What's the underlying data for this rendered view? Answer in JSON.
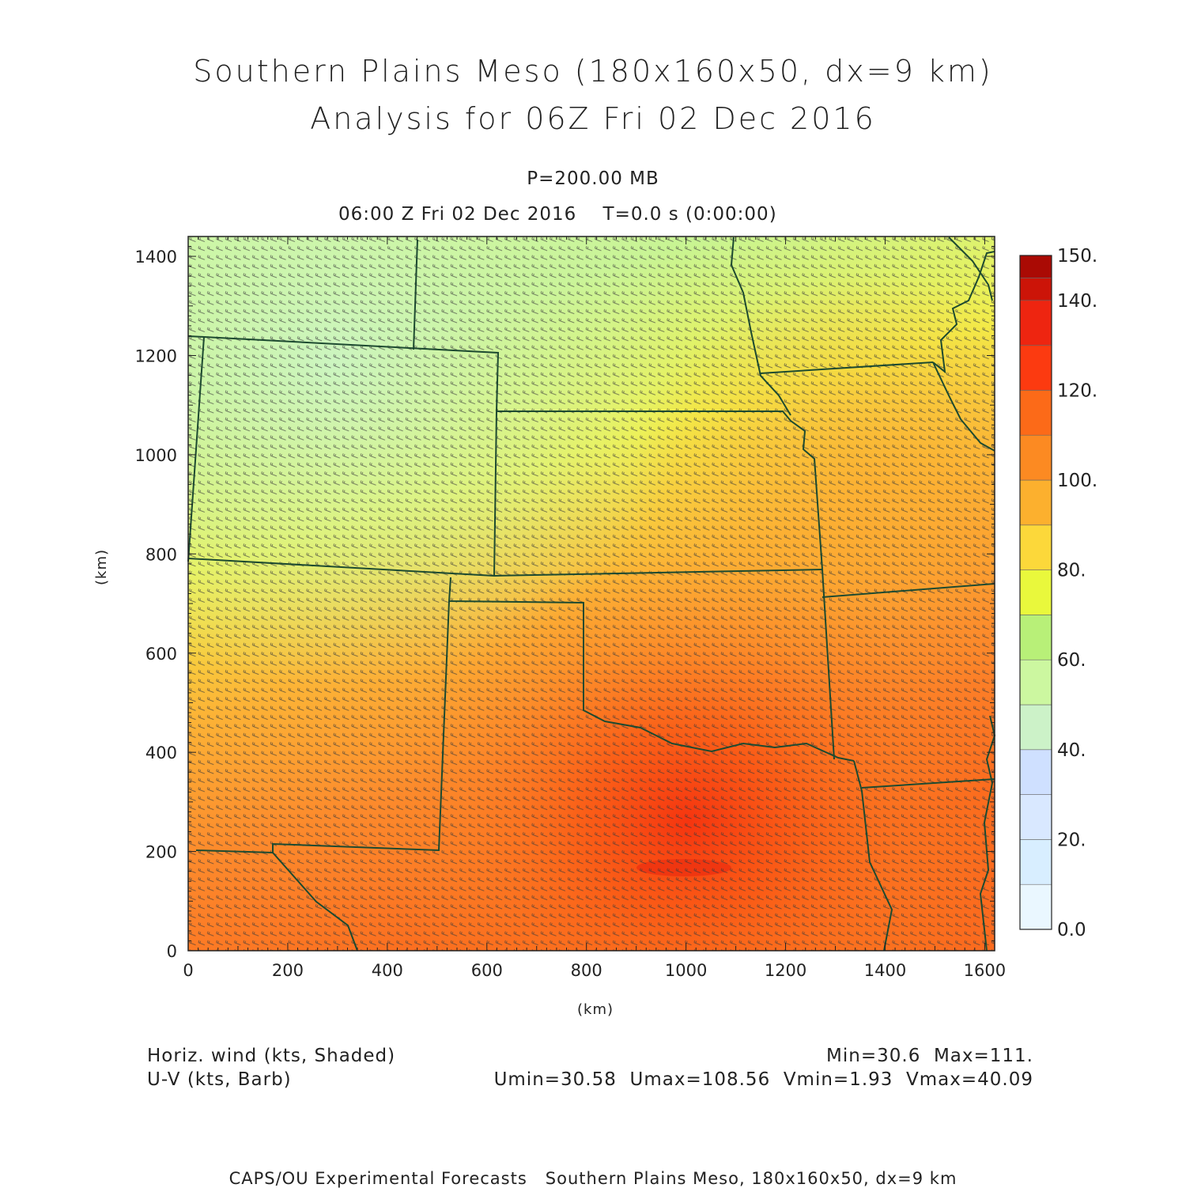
{
  "header": {
    "title_line1": "Southern Plains Meso (180x160x50, dx=9 km)",
    "title_line2": "Analysis for 06Z Fri 02 Dec 2016",
    "level": "P=200.00 MB",
    "time": "06:00 Z Fri 02 Dec 2016    T=0.0 s (0:00:00)"
  },
  "axes": {
    "xlabel": "(km)",
    "ylabel": "(km)",
    "xticks": [
      "0",
      "200",
      "400",
      "600",
      "800",
      "1000",
      "1200",
      "1400",
      "1600"
    ],
    "yticks": [
      "0",
      "200",
      "400",
      "600",
      "800",
      "1000",
      "1200",
      "1400"
    ]
  },
  "colorbar": {
    "labels": [
      "0.0",
      "20.",
      "40.",
      "60.",
      "80.",
      "100.",
      "120.",
      "140.",
      "150."
    ],
    "colors": [
      "#eaf7ff",
      "#d8eeff",
      "#d9e8ff",
      "#cfe0ff",
      "#ccf2c8",
      "#ccf7a0",
      "#b8f078",
      "#e9f83c",
      "#fcd83a",
      "#fcb02e",
      "#fc8a22",
      "#fc6a18",
      "#fc3a10",
      "#ee2510",
      "#cc1408",
      "#aa0a04"
    ]
  },
  "footer": {
    "left1": "Horiz. wind (kts, Shaded)",
    "left2": "U-V (kts, Barb)",
    "right1": "Min=30.6  Max=111.",
    "right2": "Umin=30.58  Umax=108.56  Vmin=1.93  Vmax=40.09",
    "credit": "CAPS/OU Experimental Forecasts   Southern Plains Meso, 180x160x50, dx=9 km"
  }
}
